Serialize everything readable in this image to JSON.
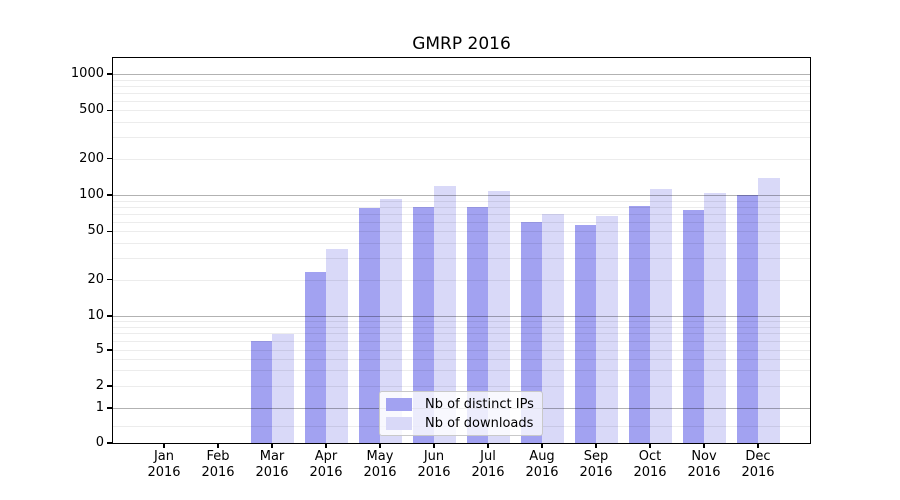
{
  "chart_data": {
    "type": "bar",
    "title": "GMRP 2016",
    "categories": [
      "Jan 2016",
      "Feb 2016",
      "Mar 2016",
      "Apr 2016",
      "May 2016",
      "Jun 2016",
      "Jul 2016",
      "Aug 2016",
      "Sep 2016",
      "Oct 2016",
      "Nov 2016",
      "Dec 2016"
    ],
    "series": [
      {
        "name": "Nb of distinct IPs",
        "color": "#a2a2f1",
        "values": [
          0,
          0,
          6,
          23,
          78,
          80,
          79,
          60,
          57,
          81,
          75,
          100
        ]
      },
      {
        "name": "Nb of downloads",
        "color": "#d9d9f8",
        "values": [
          0,
          0,
          7,
          36,
          92,
          119,
          107,
          70,
          67,
          112,
          103,
          138
        ]
      }
    ],
    "yscale": "symlog",
    "ylim": [
      0,
      1350
    ],
    "y_ticks": [
      1000,
      500,
      200,
      100,
      50,
      20,
      10,
      5,
      2,
      1,
      0
    ],
    "y_major_gridlines": [
      1,
      10,
      100,
      1000
    ],
    "grid": true,
    "legend_position": "lower center",
    "xlabel": "",
    "ylabel": ""
  }
}
